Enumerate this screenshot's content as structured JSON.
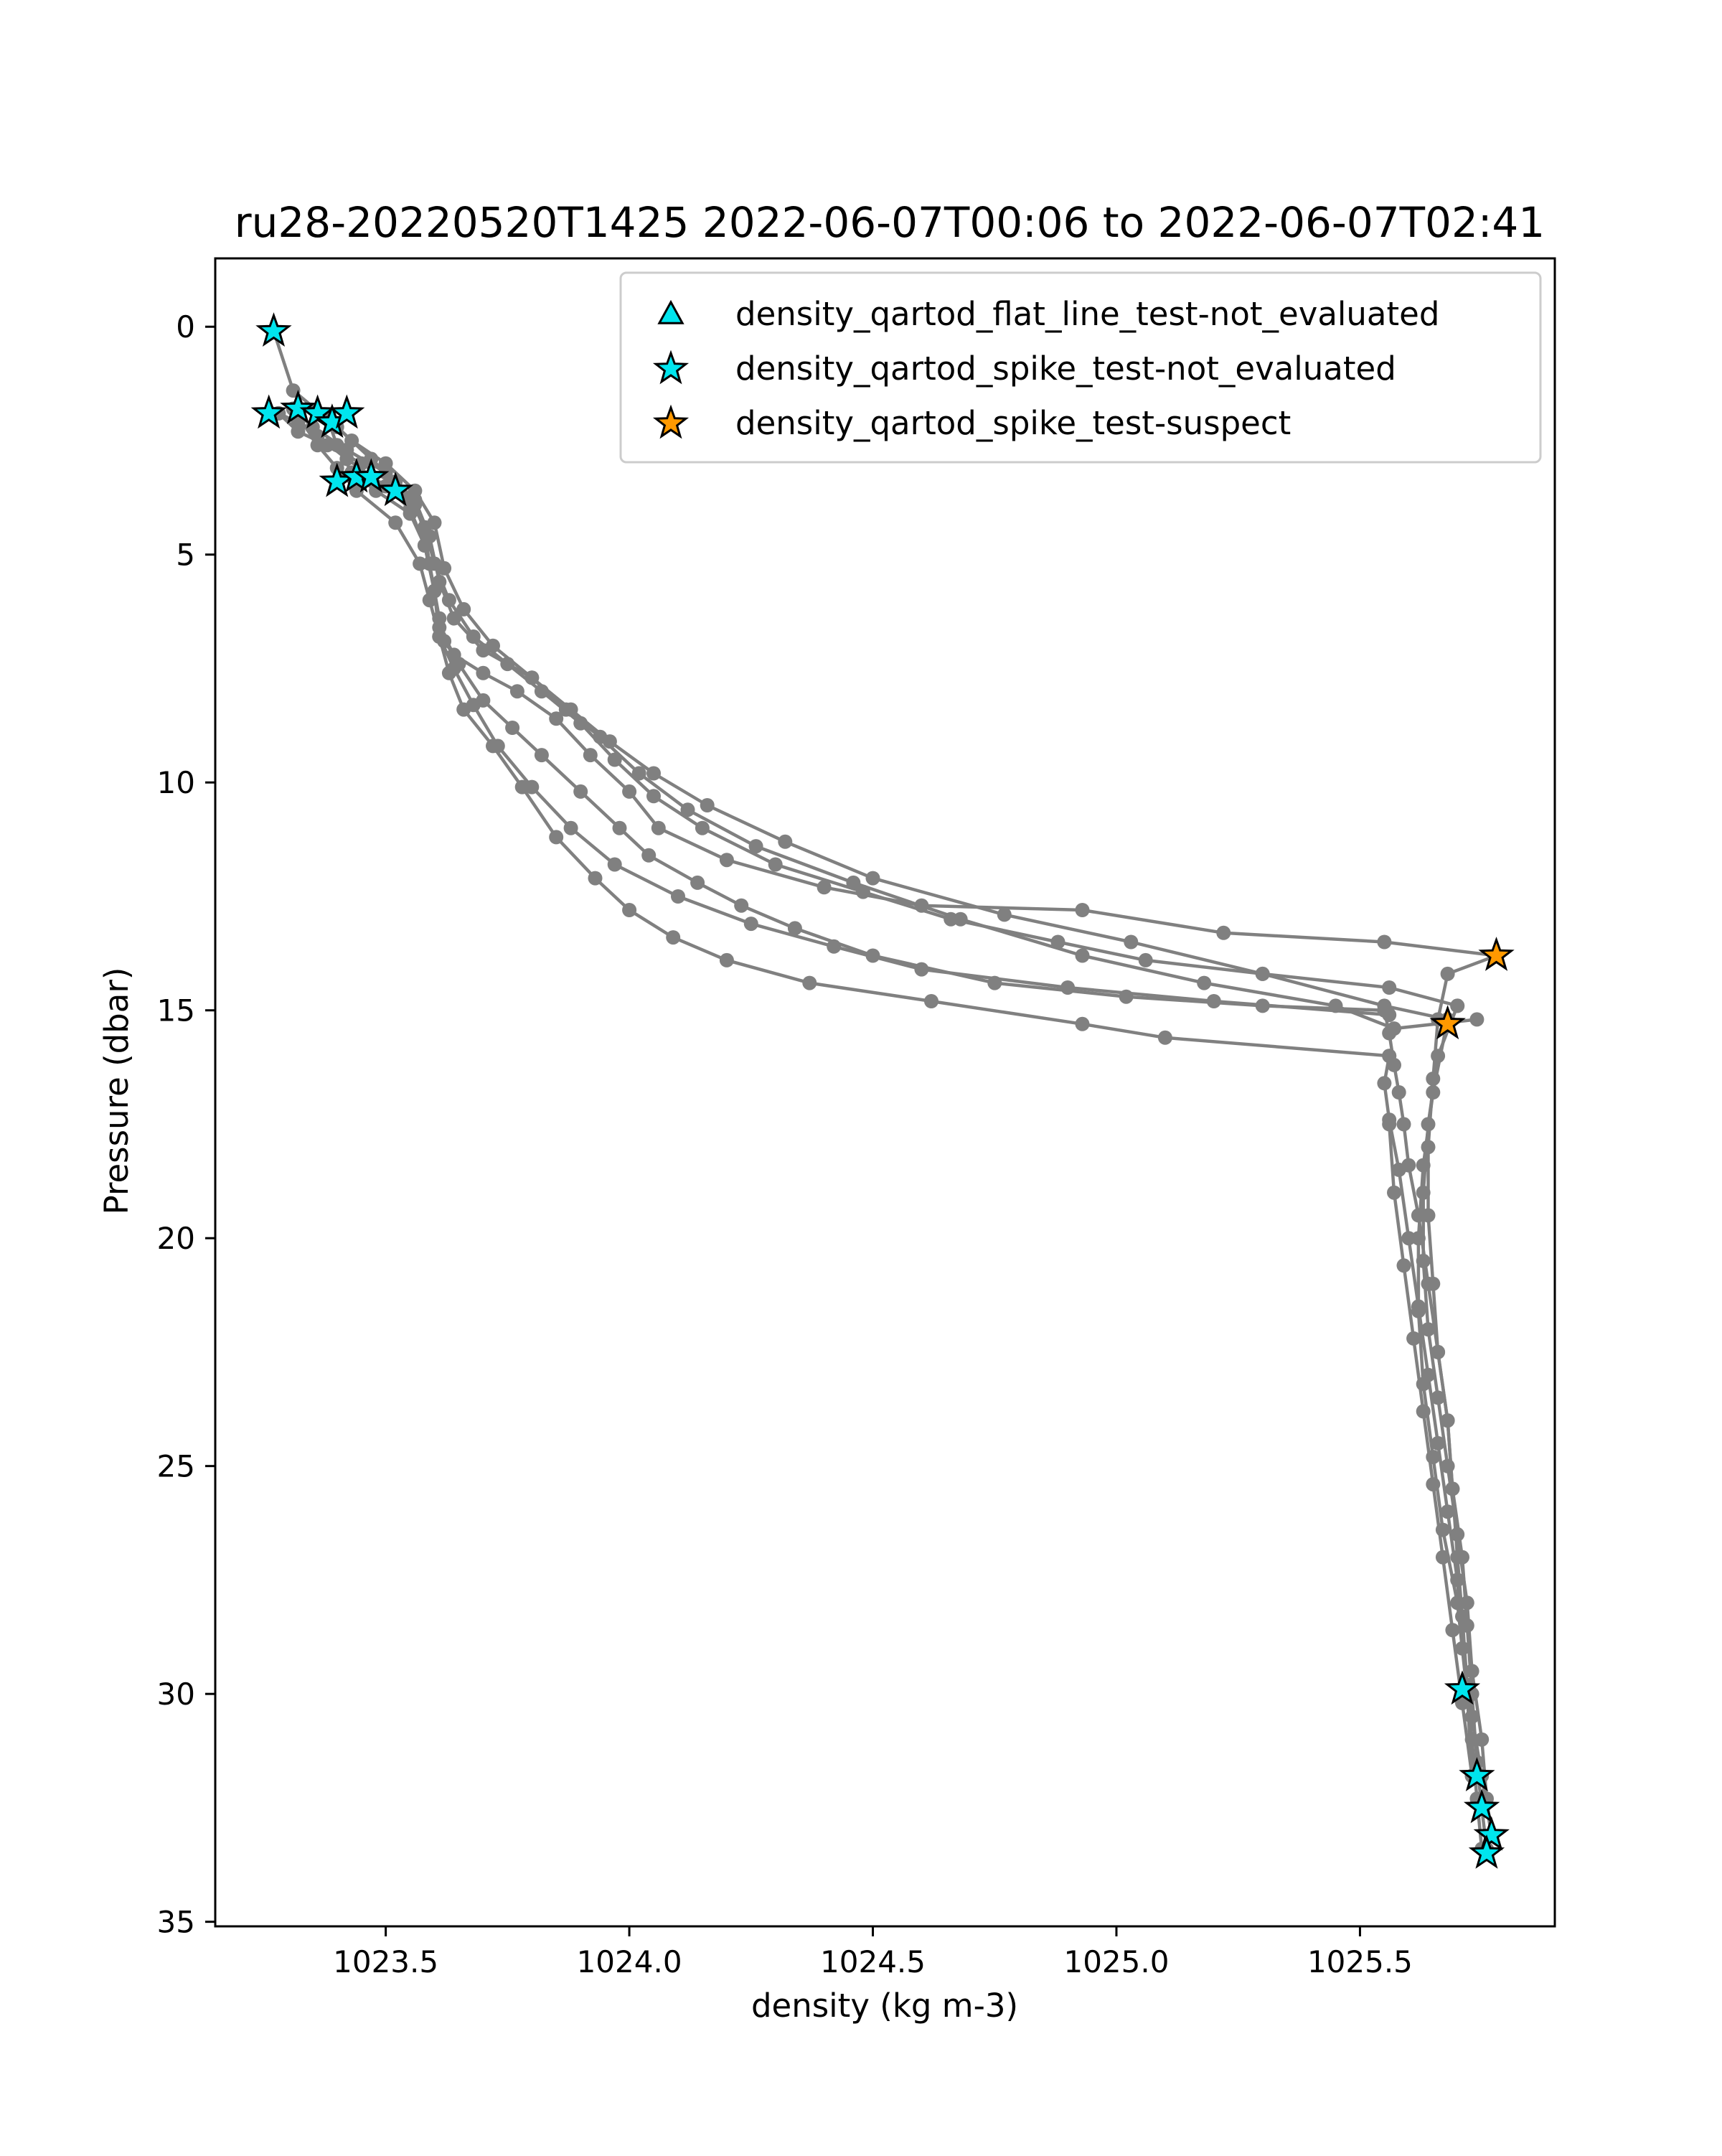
{
  "chart_data": {
    "type": "scatter",
    "title": "ru28-20220520T1425 2022-06-07T00:06 to 2022-06-07T02:41",
    "xlabel": "density (kg m-3)",
    "ylabel": "Pressure (dbar)",
    "xlim": [
      1023.15,
      1025.9
    ],
    "ylim": [
      35.1,
      -1.5
    ],
    "y_inverted": true,
    "x_ticks": [
      1023.5,
      1024.0,
      1024.5,
      1025.0,
      1025.5
    ],
    "x_tick_labels": [
      "1023.5",
      "1024.0",
      "1024.5",
      "1025.0",
      "1025.5"
    ],
    "y_ticks": [
      0,
      5,
      10,
      15,
      20,
      25,
      30,
      35
    ],
    "y_tick_labels": [
      "0",
      "5",
      "10",
      "15",
      "20",
      "25",
      "30",
      "35"
    ],
    "grid": false,
    "legend_position": "top-right",
    "legend": [
      {
        "label": "density_qartod_flat_line_test-not_evaluated",
        "marker": "triangle",
        "color": "#00e5ee"
      },
      {
        "label": "density_qartod_spike_test-not_evaluated",
        "marker": "star",
        "color": "#00e5ee"
      },
      {
        "label": "density_qartod_spike_test-suspect",
        "marker": "star",
        "color": "#ff9900"
      }
    ],
    "profile_color": "#808080",
    "profiles": [
      {
        "x": [
          1023.27,
          1023.31,
          1023.4,
          1023.47,
          1023.52,
          1023.56,
          1023.58,
          1023.59,
          1023.6,
          1023.61,
          1023.62,
          1023.64,
          1023.7,
          1023.77,
          1023.85,
          1023.92,
          1024.0,
          1024.06,
          1024.2,
          1024.4,
          1024.6,
          1024.93,
          1025.22,
          1025.55,
          1025.78
        ],
        "y": [
          0.1,
          1.4,
          2.2,
          2.9,
          3.4,
          3.9,
          4.5,
          5.2,
          5.8,
          6.4,
          6.9,
          7.2,
          7.6,
          8.0,
          8.6,
          9.4,
          10.2,
          11.0,
          11.7,
          12.3,
          12.7,
          12.8,
          13.3,
          13.5,
          13.8
        ]
      },
      {
        "x": [
          1025.78,
          1025.68,
          1025.66,
          1025.65,
          1025.64,
          1025.64,
          1025.65,
          1025.66,
          1025.68,
          1025.69,
          1025.71,
          1025.72,
          1025.73,
          1025.74,
          1025.75,
          1025.76
        ],
        "y": [
          13.8,
          14.2,
          15.2,
          16.5,
          18.0,
          19.5,
          21.0,
          22.5,
          24.0,
          25.5,
          27.0,
          28.5,
          30.0,
          31.5,
          32.5,
          33.4
        ]
      },
      {
        "x": [
          1025.75,
          1025.74,
          1025.73,
          1025.72,
          1025.71,
          1025.7,
          1025.69,
          1025.68,
          1025.66,
          1025.64,
          1025.62,
          1025.6,
          1025.59,
          1025.58,
          1025.57,
          1025.56,
          1025.55
        ],
        "y": [
          33.4,
          32.3,
          31.0,
          29.8,
          28.3,
          27.0,
          25.5,
          24.0,
          22.5,
          21.0,
          19.5,
          18.4,
          17.5,
          16.8,
          16.2,
          15.5,
          15.0
        ]
      },
      {
        "x": [
          1025.55,
          1025.3,
          1025.02,
          1024.75,
          1024.5,
          1024.34,
          1024.23,
          1024.14,
          1024.04,
          1023.98,
          1023.9,
          1023.82,
          1023.76,
          1023.7,
          1023.65,
          1023.61,
          1023.6,
          1023.58,
          1023.55,
          1023.5,
          1023.42,
          1023.36,
          1023.32,
          1023.28
        ],
        "y": [
          15.0,
          14.9,
          14.7,
          14.4,
          13.8,
          13.2,
          12.7,
          12.2,
          11.6,
          11.0,
          10.2,
          9.4,
          8.8,
          8.2,
          7.4,
          6.6,
          5.8,
          4.8,
          4.0,
          3.5,
          2.9,
          2.4,
          2.1,
          1.9
        ]
      },
      {
        "x": [
          1023.28,
          1023.32,
          1023.38,
          1023.45,
          1023.51,
          1023.55,
          1023.58,
          1023.6,
          1023.63,
          1023.68,
          1023.75,
          1023.82,
          1023.9,
          1023.97,
          1024.05,
          1024.15,
          1024.3,
          1024.48,
          1024.66,
          1024.88,
          1025.06,
          1025.3,
          1025.56,
          1025.7
        ],
        "y": [
          1.9,
          2.3,
          2.6,
          3.0,
          3.4,
          3.8,
          4.4,
          5.2,
          6.0,
          6.8,
          7.4,
          8.0,
          8.7,
          9.5,
          10.3,
          11.0,
          11.8,
          12.4,
          13.0,
          13.5,
          13.9,
          14.2,
          14.5,
          14.9
        ]
      },
      {
        "x": [
          1025.7,
          1025.66,
          1025.64,
          1025.63,
          1025.63,
          1025.64,
          1025.66,
          1025.68,
          1025.7,
          1025.72,
          1025.73,
          1025.75,
          1025.76,
          1025.77
        ],
        "y": [
          14.9,
          16.0,
          17.5,
          19.0,
          20.5,
          22.0,
          23.5,
          25.0,
          26.5,
          28.0,
          29.5,
          31.0,
          32.3,
          33.1
        ]
      },
      {
        "x": [
          1025.77,
          1025.75,
          1025.73,
          1025.71,
          1025.7,
          1025.68,
          1025.66,
          1025.64,
          1025.62,
          1025.6,
          1025.58,
          1025.56,
          1025.55,
          1025.56
        ],
        "y": [
          33.1,
          31.8,
          30.5,
          29.0,
          27.5,
          26.0,
          24.5,
          23.0,
          21.5,
          20.0,
          18.5,
          17.4,
          16.6,
          16.0
        ]
      },
      {
        "x": [
          1025.56,
          1025.1,
          1024.93,
          1024.62,
          1024.37,
          1024.2,
          1024.09,
          1024.0,
          1023.93,
          1023.85,
          1023.78,
          1023.72,
          1023.66,
          1023.63,
          1023.61,
          1023.59,
          1023.57,
          1023.52,
          1023.44,
          1023.4,
          1023.36,
          1023.31
        ],
        "y": [
          16.0,
          15.6,
          15.3,
          14.8,
          14.4,
          13.9,
          13.4,
          12.8,
          12.1,
          11.2,
          10.1,
          9.2,
          8.4,
          7.6,
          6.8,
          6.0,
          5.2,
          4.3,
          3.6,
          3.1,
          2.6,
          1.8
        ]
      },
      {
        "x": [
          1023.31,
          1023.35,
          1023.42,
          1023.5,
          1023.56,
          1023.59,
          1023.61,
          1023.64,
          1023.7,
          1023.8,
          1023.88,
          1023.96,
          1024.05,
          1024.16,
          1024.32,
          1024.5,
          1024.77,
          1025.03,
          1025.3,
          1025.55,
          1025.68
        ],
        "y": [
          1.8,
          2.2,
          2.7,
          3.2,
          3.8,
          4.6,
          5.6,
          6.4,
          7.1,
          7.7,
          8.4,
          9.1,
          9.8,
          10.5,
          11.3,
          12.1,
          12.9,
          13.5,
          14.2,
          14.9,
          15.2
        ]
      },
      {
        "x": [
          1025.68,
          1025.65,
          1025.63,
          1025.62,
          1025.62,
          1025.63,
          1025.65,
          1025.67,
          1025.7,
          1025.72,
          1025.73
        ],
        "y": [
          15.2,
          16.8,
          18.4,
          20.0,
          21.6,
          23.2,
          24.8,
          26.4,
          28.0,
          30.0,
          31.8
        ]
      },
      {
        "x": [
          1025.73,
          1025.71,
          1025.69,
          1025.67,
          1025.65,
          1025.63,
          1025.61,
          1025.59,
          1025.57,
          1025.56
        ],
        "y": [
          31.8,
          30.2,
          28.6,
          27.0,
          25.4,
          23.8,
          22.2,
          20.6,
          19.0,
          17.5
        ]
      },
      {
        "x": [
          1025.56,
          1025.2,
          1024.9,
          1024.6,
          1024.42,
          1024.25,
          1024.1,
          1023.97,
          1023.88,
          1023.8,
          1023.73,
          1023.68,
          1023.64,
          1023.61,
          1023.6,
          1023.58,
          1023.55,
          1023.48,
          1023.43,
          1023.4,
          1023.38
        ],
        "y": [
          15.1,
          14.8,
          14.5,
          14.1,
          13.6,
          13.1,
          12.5,
          11.8,
          11.0,
          10.1,
          9.2,
          8.3,
          7.5,
          6.8,
          5.8,
          4.8,
          4.1,
          3.6,
          3.2,
          2.6,
          2.0
        ]
      },
      {
        "x": [
          1023.38,
          1023.43,
          1023.5,
          1023.56,
          1023.6,
          1023.62,
          1023.66,
          1023.72,
          1023.8,
          1023.87,
          1023.94,
          1024.02,
          1024.12,
          1024.26,
          1024.46,
          1024.68,
          1024.93,
          1025.18,
          1025.45,
          1025.57,
          1025.74
        ],
        "y": [
          2.0,
          2.5,
          3.0,
          3.6,
          4.3,
          5.3,
          6.2,
          7.0,
          7.7,
          8.4,
          9.0,
          9.8,
          10.6,
          11.4,
          12.2,
          13.0,
          13.8,
          14.4,
          14.9,
          15.4,
          15.2
        ]
      }
    ],
    "flagged_points": {
      "spike_not_evaluated": {
        "x": [
          1023.27,
          1023.26,
          1023.32,
          1023.36,
          1023.39,
          1023.42,
          1023.4,
          1023.44,
          1023.47,
          1023.52,
          1025.71,
          1025.74,
          1025.75,
          1025.77,
          1025.76
        ],
        "y": [
          0.1,
          1.9,
          1.8,
          1.9,
          2.1,
          1.9,
          3.4,
          3.3,
          3.3,
          3.6,
          29.9,
          31.8,
          32.5,
          33.1,
          33.5
        ]
      },
      "spike_suspect": {
        "x": [
          1025.78,
          1025.68
        ],
        "y": [
          13.8,
          15.3
        ]
      },
      "flat_line_not_evaluated": {
        "x": [],
        "y": []
      }
    }
  }
}
